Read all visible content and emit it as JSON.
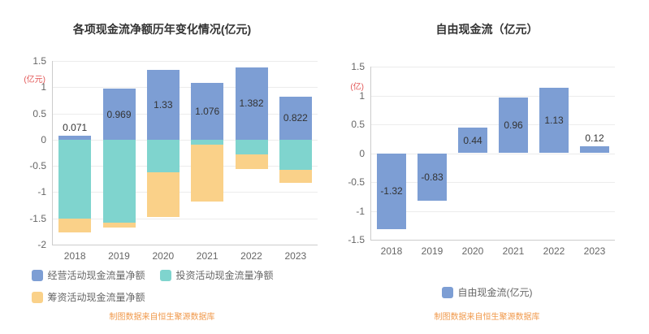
{
  "page": {
    "background": "#ffffff"
  },
  "chart_data": [
    {
      "type": "bar",
      "stacked": true,
      "title": "各项现金流净额历年变化情况(亿元)",
      "y_axis_unit": "(亿元)",
      "categories": [
        "2018",
        "2019",
        "2020",
        "2021",
        "2022",
        "2023"
      ],
      "ylim": [
        -2,
        1.5
      ],
      "ytick_step": 0.5,
      "grid": true,
      "legend_position": "bottom",
      "series": [
        {
          "name": "经营活动现金流量净额",
          "color": "#7d9ed4",
          "values": [
            0.071,
            0.969,
            1.33,
            1.076,
            1.382,
            0.822
          ],
          "data_labels": [
            "0.071",
            "0.969",
            "1.33",
            "1.076",
            "1.382",
            "0.822"
          ]
        },
        {
          "name": "投资活动现金流量净额",
          "color": "#7fd4ce",
          "values": [
            -1.5,
            -1.58,
            -0.62,
            -0.1,
            -0.28,
            -0.57
          ]
        },
        {
          "name": "筹资活动现金流量净额",
          "color": "#fad189",
          "values": [
            -0.27,
            -0.1,
            -0.85,
            -1.08,
            -0.28,
            -0.25
          ]
        }
      ],
      "footer": "制图数据来自恒生聚源数据库"
    },
    {
      "type": "bar",
      "stacked": false,
      "title": "自由现金流（亿元）",
      "y_axis_unit": "(亿)",
      "categories": [
        "2018",
        "2019",
        "2020",
        "2021",
        "2022",
        "2023"
      ],
      "ylim": [
        -1.5,
        1.5
      ],
      "ytick_step": 0.5,
      "grid": true,
      "legend_position": "bottom",
      "series": [
        {
          "name": "自由现金流(亿元)",
          "color": "#7d9ed4",
          "values": [
            -1.32,
            -0.83,
            0.44,
            0.96,
            1.13,
            0.12
          ],
          "data_labels": [
            "-1.32",
            "-0.83",
            "0.44",
            "0.96",
            "1.13",
            "0.12"
          ]
        }
      ],
      "footer": "制图数据来自恒生聚源数据库"
    }
  ],
  "colors": {
    "operating_cashflow": "#7d9ed4",
    "investing_cashflow": "#7fd4ce",
    "financing_cashflow": "#fad189",
    "free_cashflow": "#7d9ed4",
    "axis_unit_text": "#e25555",
    "footer_text": "#f09a4d",
    "axis_text": "#666666",
    "title_text": "#333333"
  }
}
